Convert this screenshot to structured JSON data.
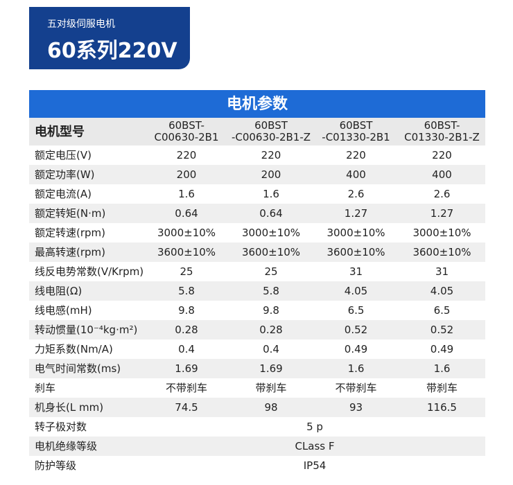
{
  "header": {
    "subtitle": "五对级伺服电机",
    "title": "60系列220V"
  },
  "table": {
    "title": "电机参数",
    "header_label": "电机型号",
    "columns": [
      [
        "60BST-",
        "C00630-2B1"
      ],
      [
        "60BST",
        "-C00630-2B1-Z"
      ],
      [
        "60BST",
        "-C01330-2B1"
      ],
      [
        "60BST-",
        "C01330-2B1-Z"
      ]
    ],
    "rows": [
      [
        "额定电压(V)",
        "220",
        "220",
        "220",
        "220"
      ],
      [
        "额定功率(W)",
        "200",
        "200",
        "400",
        "400"
      ],
      [
        "额定电流(A)",
        "1.6",
        "1.6",
        "2.6",
        "2.6"
      ],
      [
        "额定转矩(N·m)",
        "0.64",
        "0.64",
        "1.27",
        "1.27"
      ],
      [
        "额定转速(rpm)",
        "3000±10%",
        "3000±10%",
        "3000±10%",
        "3000±10%"
      ],
      [
        "最高转速(rpm)",
        "3600±10%",
        "3600±10%",
        "3600±10%",
        "3600±10%"
      ],
      [
        "线反电势常数(V/Krpm)",
        "25",
        "25",
        "31",
        "31"
      ],
      [
        "线电阻(Ω)",
        "5.8",
        "5.8",
        "4.05",
        "4.05"
      ],
      [
        "线电感(mH)",
        "9.8",
        "9.8",
        "6.5",
        "6.5"
      ],
      [
        "转动惯量(10⁻⁴kg·m²)",
        "0.28",
        "0.28",
        "0.52",
        "0.52"
      ],
      [
        "力矩系数(Nm/A)",
        "0.4",
        "0.4",
        "0.49",
        "0.49"
      ],
      [
        "电气时间常数(ms)",
        "1.69",
        "1.69",
        "1.6",
        "1.6"
      ],
      [
        "刹车",
        "不带刹车",
        "带刹车",
        "不带刹车",
        "带刹车"
      ],
      [
        "机身长(L mm)",
        "74.5",
        "98",
        "93",
        "116.5"
      ]
    ],
    "merged_rows": [
      [
        "转子极对数",
        "5 p"
      ],
      [
        "电机绝缘等级",
        "CLass F"
      ],
      [
        "防护等级",
        "IP54"
      ]
    ]
  }
}
